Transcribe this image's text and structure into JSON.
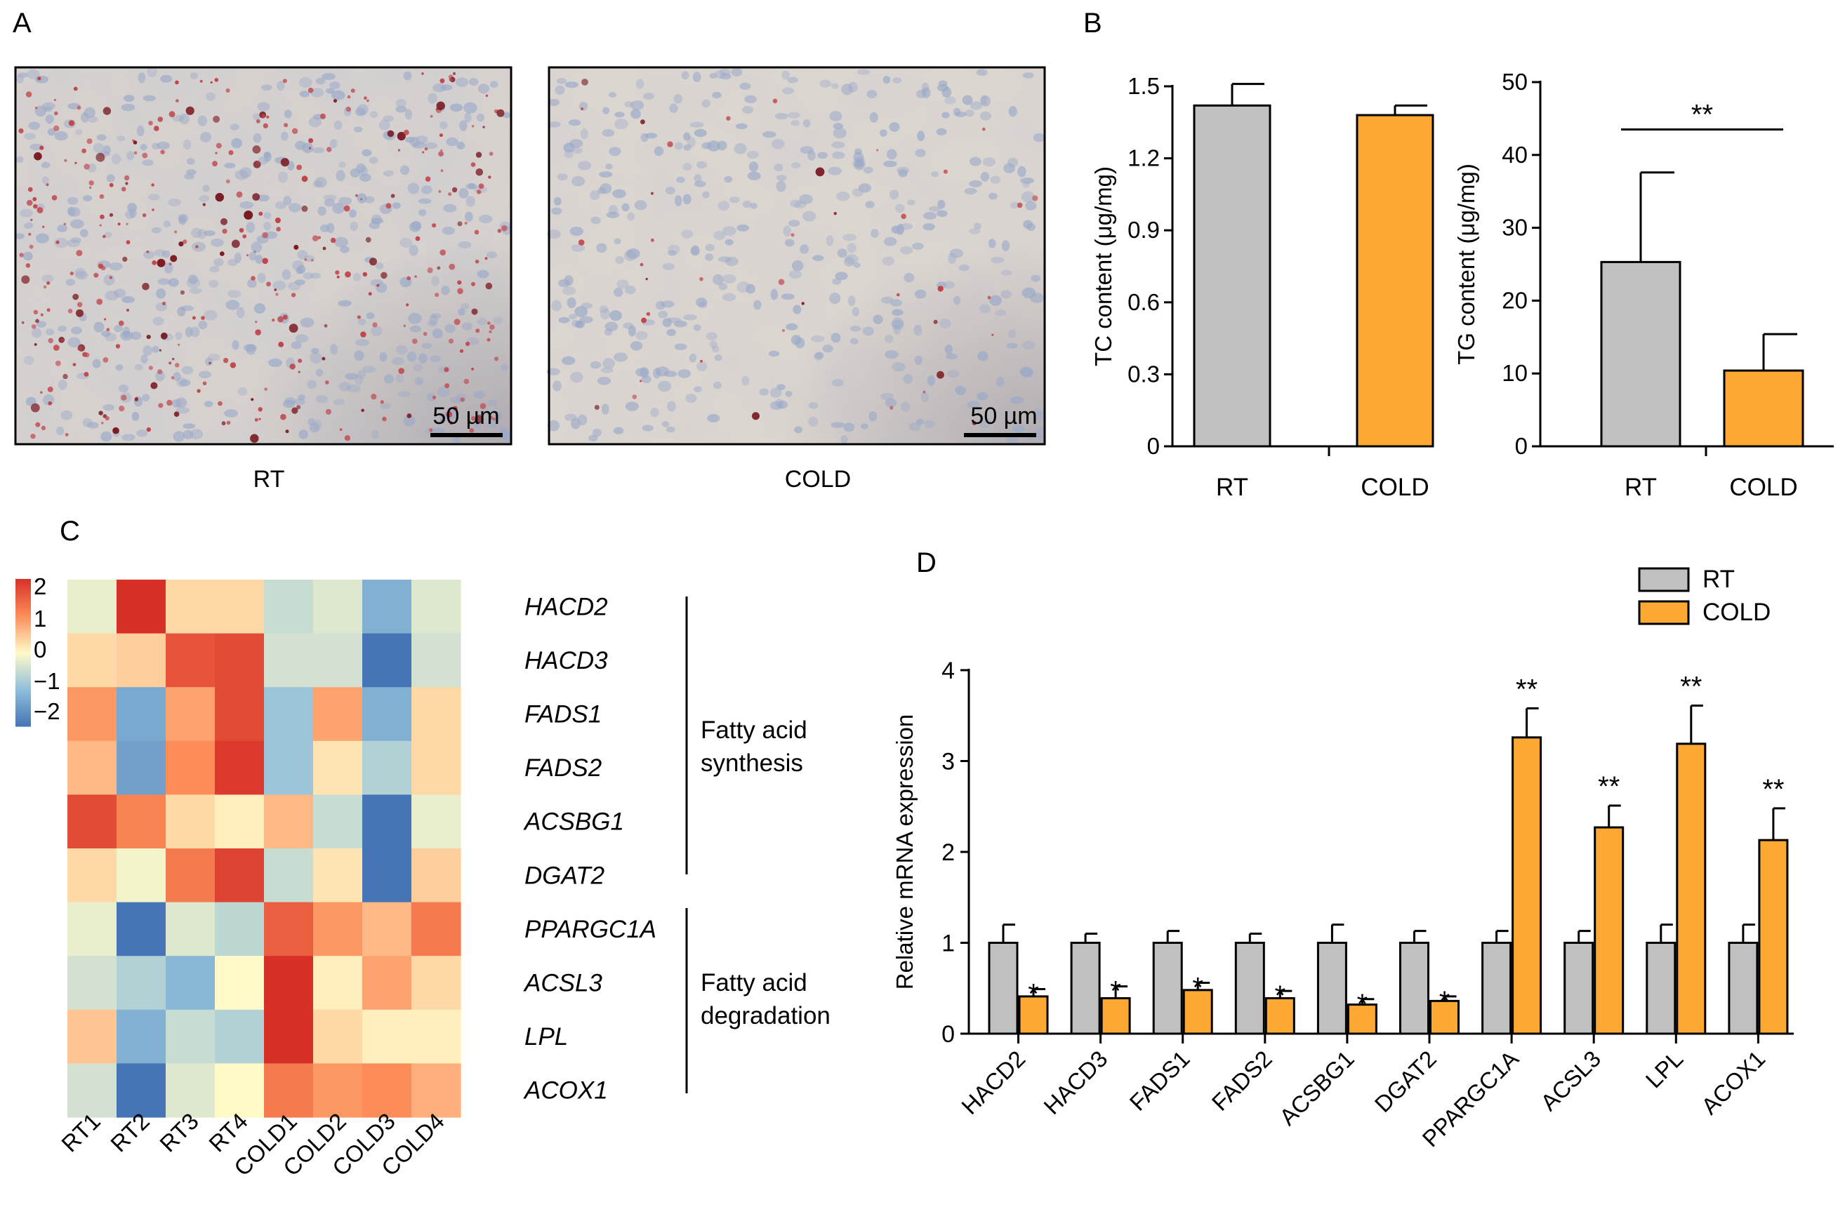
{
  "panels": {
    "a": "A",
    "b": "B",
    "c": "C",
    "d": "D"
  },
  "micrographs": {
    "images": [
      {
        "label": "RT",
        "scale_bar": "50 µm",
        "tissue_color": "#d7d2ce",
        "stain_density": "high"
      },
      {
        "label": "COLD",
        "scale_bar": "50 µm",
        "tissue_color": "#dcd6d0",
        "stain_density": "low"
      }
    ]
  },
  "chart_data": [
    {
      "id": "tc",
      "type": "bar",
      "categories": [
        "RT",
        "COLD"
      ],
      "values": [
        1.42,
        1.38
      ],
      "errors": [
        0.09,
        0.04
      ],
      "ylabel": "TC content (μg/mg)",
      "ylim": [
        0,
        1.5
      ],
      "yticks": [
        "0",
        "0.3",
        "0.6",
        "0.9",
        "1.2",
        "1.5"
      ],
      "colors": [
        "#c0c0c0",
        "#fca833"
      ]
    },
    {
      "id": "tg",
      "type": "bar",
      "categories": [
        "RT",
        "COLD"
      ],
      "values": [
        25.3,
        10.4
      ],
      "errors": [
        12.3,
        5.0
      ],
      "ylabel": "TG content (μg/mg)",
      "ylim": [
        0,
        50
      ],
      "yticks": [
        "0",
        "10",
        "20",
        "30",
        "40",
        "50"
      ],
      "significance": "**",
      "colors": [
        "#c0c0c0",
        "#fca833"
      ]
    },
    {
      "id": "heatmap",
      "type": "heatmap",
      "columns": [
        "RT1",
        "RT2",
        "RT3",
        "RT4",
        "COLD1",
        "COLD2",
        "COLD3",
        "COLD4"
      ],
      "rows": [
        "HACD2",
        "HACD3",
        "FADS1",
        "FADS2",
        "ACSBG1",
        "DGAT2",
        "PPARGC1A",
        "ACSL3",
        "LPL",
        "ACOX1"
      ],
      "values": [
        [
          -0.2,
          2.0,
          0.3,
          0.3,
          -0.5,
          -0.3,
          -1.2,
          -0.3
        ],
        [
          0.3,
          0.4,
          1.6,
          1.7,
          -0.4,
          -0.4,
          -2.0,
          -0.4
        ],
        [
          0.9,
          -1.3,
          0.8,
          1.7,
          -0.9,
          0.8,
          -1.2,
          0.3
        ],
        [
          0.6,
          -1.4,
          1.0,
          1.9,
          -0.9,
          0.2,
          -0.7,
          0.3
        ],
        [
          1.7,
          1.1,
          0.3,
          0.1,
          0.6,
          -0.5,
          -2.0,
          -0.2
        ],
        [
          0.3,
          -0.1,
          1.2,
          1.8,
          -0.5,
          0.2,
          -2.0,
          0.4
        ],
        [
          -0.2,
          -2.0,
          -0.3,
          -0.6,
          1.5,
          0.9,
          0.6,
          1.2
        ],
        [
          -0.4,
          -0.7,
          -1.1,
          0.0,
          2.0,
          0.1,
          0.8,
          0.3
        ],
        [
          0.5,
          -1.2,
          -0.5,
          -0.7,
          2.0,
          0.3,
          0.1,
          0.1
        ],
        [
          -0.4,
          -2.0,
          -0.3,
          0.0,
          1.2,
          0.9,
          1.0,
          0.7
        ]
      ],
      "scale_ticks": [
        "2",
        "1",
        "0",
        "−1",
        "−2"
      ],
      "vmin": -2,
      "vmax": 2,
      "groups": [
        {
          "line1": "Fatty acid",
          "line2": "synthesis"
        },
        {
          "line1": "Fatty acid",
          "line2": "degradation"
        }
      ]
    },
    {
      "id": "qpcr",
      "type": "bar",
      "categories": [
        "HACD2",
        "HACD3",
        "FADS1",
        "FADS2",
        "ACSBG1",
        "DGAT2",
        "PPARGC1A",
        "ACSL3",
        "LPL",
        "ACOX1"
      ],
      "series": [
        {
          "name": "RT",
          "values": [
            1.0,
            1.0,
            1.0,
            1.0,
            1.0,
            1.0,
            1.0,
            1.0,
            1.0,
            1.0
          ],
          "errors": [
            0.2,
            0.1,
            0.13,
            0.1,
            0.2,
            0.13,
            0.13,
            0.13,
            0.2,
            0.2
          ],
          "color": "#c0c0c0"
        },
        {
          "name": "COLD",
          "values": [
            0.41,
            0.39,
            0.48,
            0.39,
            0.32,
            0.36,
            3.26,
            2.27,
            3.19,
            2.13
          ],
          "errors": [
            0.08,
            0.13,
            0.08,
            0.08,
            0.06,
            0.05,
            0.32,
            0.24,
            0.42,
            0.35
          ],
          "color": "#fca833"
        }
      ],
      "significance": [
        "*",
        "*",
        "*",
        "*",
        "*",
        "*",
        "**",
        "**",
        "**",
        "**"
      ],
      "ylabel": "Relative mRNA expression",
      "ylim": [
        0,
        4
      ],
      "yticks": [
        "0",
        "1",
        "2",
        "3",
        "4"
      ]
    }
  ]
}
